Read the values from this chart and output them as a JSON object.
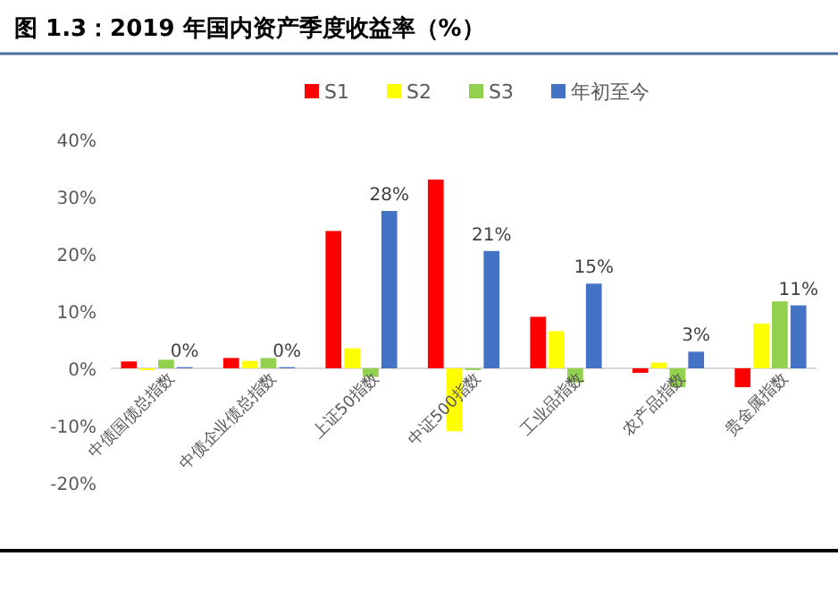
{
  "chart_data": {
    "type": "bar",
    "title": "图 1.3：2019 年国内资产季度收益率（%）",
    "categories": [
      "中债国债总指数",
      "中债企业债总指数",
      "上证50指数",
      "中证500指数",
      "工业品指数",
      "农产品指数",
      "贵金属指数"
    ],
    "series": [
      {
        "name": "S1",
        "color": "#ff0000",
        "values": [
          1.2,
          1.8,
          24,
          33,
          9,
          -0.8,
          -3.3
        ]
      },
      {
        "name": "S2",
        "color": "#ffff00",
        "values": [
          -0.3,
          1.3,
          3.5,
          -11,
          6.5,
          1,
          7.8
        ]
      },
      {
        "name": "S3",
        "color": "#92d050",
        "values": [
          1.5,
          1.8,
          -1.5,
          -0.3,
          -2.5,
          -3.3,
          11.7
        ]
      },
      {
        "name": "年初至今",
        "color": "#4472c4",
        "values": [
          0.2,
          0.2,
          27.5,
          20.5,
          14.8,
          2.9,
          11
        ],
        "value_labels": [
          "0%",
          "0%",
          "28%",
          "21%",
          "15%",
          "3%",
          "11%"
        ]
      }
    ],
    "ylim": [
      -20,
      40
    ],
    "yticks": [
      {
        "value": -20,
        "label": "-20%"
      },
      {
        "value": -10,
        "label": "-10%"
      },
      {
        "value": 0,
        "label": "0%"
      },
      {
        "value": 10,
        "label": "10%"
      },
      {
        "value": 20,
        "label": "20%"
      },
      {
        "value": 30,
        "label": "30%"
      },
      {
        "value": 40,
        "label": "40%"
      }
    ],
    "grid": false,
    "legend": "top"
  }
}
